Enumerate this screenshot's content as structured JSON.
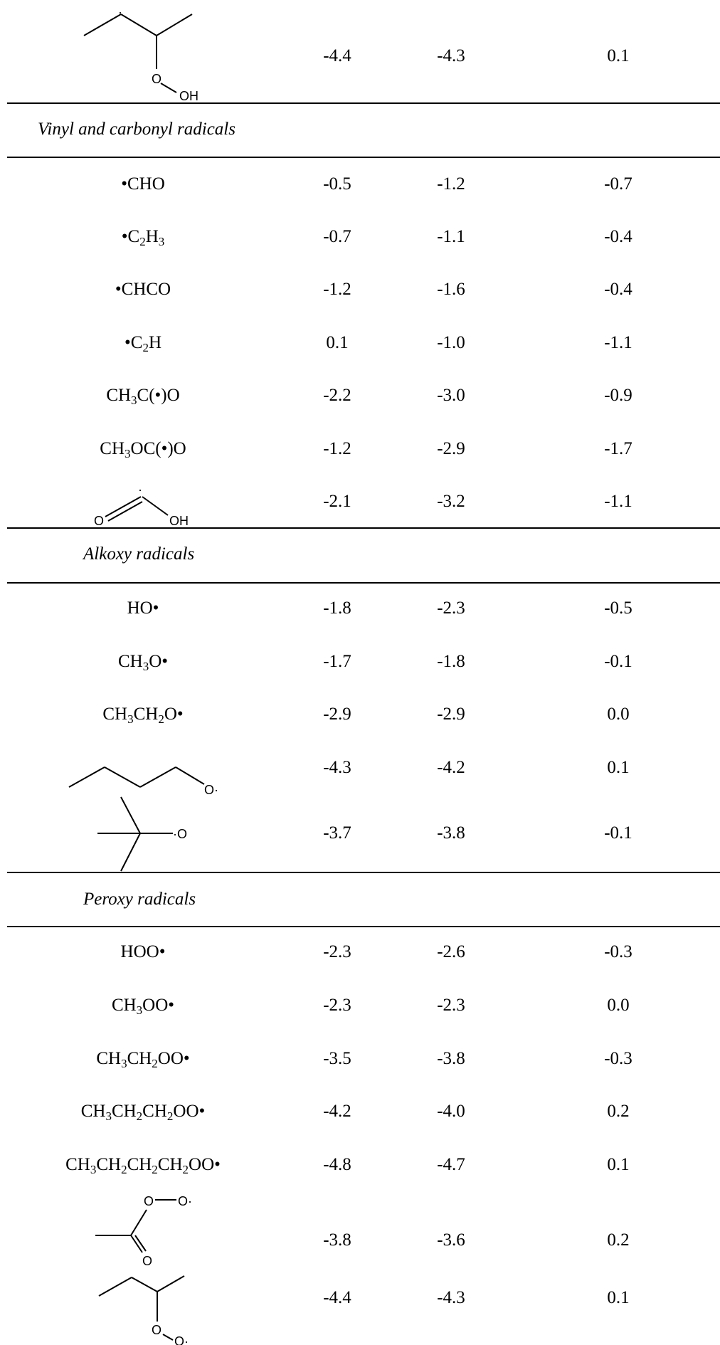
{
  "sections": [
    {
      "title": "Vinyl and carbonyl radicals"
    },
    {
      "title": "Alkoxy radicals"
    },
    {
      "title": "Peroxy radicals"
    }
  ],
  "rows": [
    {
      "species": "",
      "v1": "-4.4",
      "v2": "-4.3",
      "v3": "0.1"
    },
    {
      "species_parts": [
        "•CHO"
      ],
      "v1": "-0.5",
      "v2": "-1.2",
      "v3": "-0.7"
    },
    {
      "species_parts": [
        "•C",
        "2",
        "H",
        "3"
      ],
      "v1": "-0.7",
      "v2": "-1.1",
      "v3": "-0.4"
    },
    {
      "species_parts": [
        "•CHCO"
      ],
      "v1": "-1.2",
      "v2": "-1.6",
      "v3": "-0.4"
    },
    {
      "species_parts": [
        "•C",
        "2",
        "H"
      ],
      "v1": "0.1",
      "v2": "-1.0",
      "v3": "-1.1"
    },
    {
      "species_parts": [
        "CH",
        "3",
        "C(•)O"
      ],
      "v1": "-2.2",
      "v2": "-3.0",
      "v3": "-0.9"
    },
    {
      "species_parts": [
        "CH",
        "3",
        "OC(•)O"
      ],
      "v1": "-1.2",
      "v2": "-2.9",
      "v3": "-1.7"
    },
    {
      "species": "",
      "v1": "-2.1",
      "v2": "-3.2",
      "v3": "-1.1"
    },
    {
      "species_parts": [
        "HO•"
      ],
      "v1": "-1.8",
      "v2": "-2.3",
      "v3": "-0.5"
    },
    {
      "species_parts": [
        "CH",
        "3",
        "O•"
      ],
      "v1": "-1.7",
      "v2": "-1.8",
      "v3": "-0.1"
    },
    {
      "species_parts": [
        "CH",
        "3",
        "CH",
        "2",
        "O•"
      ],
      "v1": "-2.9",
      "v2": "-2.9",
      "v3": "0.0"
    },
    {
      "species": "",
      "v1": "-4.3",
      "v2": "-4.2",
      "v3": "0.1"
    },
    {
      "species": "",
      "v1": "-3.7",
      "v2": "-3.8",
      "v3": "-0.1"
    },
    {
      "species_parts": [
        "HOO•"
      ],
      "v1": "-2.3",
      "v2": "-2.6",
      "v3": "-0.3"
    },
    {
      "species_parts": [
        "CH",
        "3",
        "OO•"
      ],
      "v1": "-2.3",
      "v2": "-2.3",
      "v3": "0.0"
    },
    {
      "species_parts": [
        "CH",
        "3",
        "CH",
        "2",
        "OO•"
      ],
      "v1": "-3.5",
      "v2": "-3.8",
      "v3": "-0.3"
    },
    {
      "species_parts": [
        "CH",
        "3",
        "CH",
        "2",
        "CH",
        "2",
        "OO•"
      ],
      "v1": "-4.2",
      "v2": "-4.0",
      "v3": "0.2"
    },
    {
      "species_parts": [
        "CH",
        "3",
        "CH",
        "2",
        "CH",
        "2",
        "CH",
        "2",
        "OO•"
      ],
      "v1": "-4.8",
      "v2": "-4.7",
      "v3": "0.1"
    },
    {
      "species": "",
      "v1": "-3.8",
      "v2": "-3.6",
      "v3": "0.2"
    },
    {
      "species": "",
      "v1": "-4.4",
      "v2": "-4.3",
      "v3": "0.1"
    }
  ],
  "structures": {
    "oh_label": "OH",
    "o_label": "O",
    "radical_dot": "·",
    "o_radical_label": "O·"
  }
}
